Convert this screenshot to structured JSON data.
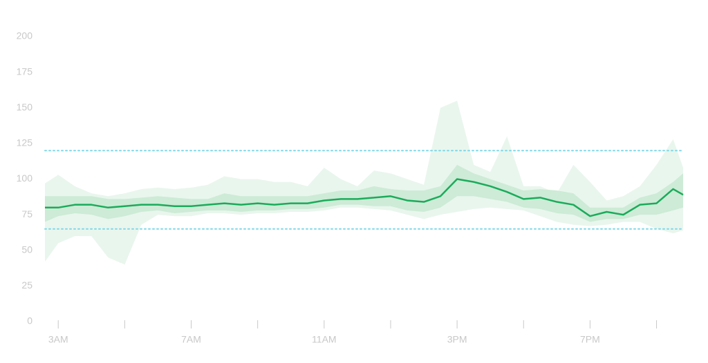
{
  "chart_data": {
    "type": "line",
    "color": "#1aab5a",
    "x": [
      2.6,
      3,
      3.5,
      4,
      4.5,
      5,
      5.5,
      6,
      6.5,
      7,
      7.5,
      8,
      8.5,
      9,
      9.5,
      10,
      10.5,
      11,
      11.5,
      12,
      12.5,
      13,
      13.5,
      14,
      14.5,
      15,
      15.5,
      16,
      16.5,
      17,
      17.5,
      18,
      18.5,
      19,
      19.5,
      20,
      20.5,
      21,
      21.5,
      21.8
    ],
    "values": [
      80,
      80,
      82,
      82,
      80,
      81,
      82,
      82,
      81,
      81,
      82,
      83,
      82,
      83,
      82,
      83,
      83,
      85,
      86,
      86,
      87,
      88,
      85,
      84,
      88,
      100,
      98,
      95,
      91,
      86,
      87,
      84,
      82,
      74,
      77,
      75,
      82,
      83,
      93,
      89
    ],
    "bands": [
      {
        "color": "#e9f6ed",
        "lower": [
          42,
          55,
          60,
          60,
          45,
          40,
          68,
          75,
          74,
          74,
          76,
          76,
          75,
          76,
          76,
          77,
          77,
          78,
          80,
          80,
          79,
          78,
          75,
          72,
          75,
          77,
          79,
          80,
          79,
          78,
          74,
          70,
          68,
          67,
          68,
          70,
          70,
          65,
          62,
          64
        ],
        "upper": [
          97,
          103,
          95,
          90,
          88,
          90,
          93,
          94,
          93,
          94,
          96,
          102,
          100,
          100,
          98,
          98,
          95,
          108,
          100,
          95,
          106,
          104,
          100,
          96,
          150,
          155,
          110,
          105,
          130,
          95,
          95,
          90,
          110,
          98,
          85,
          88,
          95,
          110,
          128,
          108
        ]
      },
      {
        "color": "#cdebd6",
        "lower": [
          70,
          74,
          76,
          75,
          72,
          74,
          77,
          78,
          76,
          77,
          78,
          78,
          77,
          78,
          78,
          79,
          79,
          80,
          82,
          82,
          81,
          81,
          78,
          77,
          80,
          88,
          88,
          86,
          84,
          80,
          79,
          76,
          75,
          70,
          72,
          72,
          75,
          75,
          78,
          80
        ],
        "upper": [
          88,
          88,
          88,
          88,
          86,
          86,
          87,
          88,
          87,
          86,
          86,
          90,
          88,
          88,
          88,
          88,
          88,
          90,
          92,
          92,
          95,
          93,
          92,
          92,
          95,
          110,
          104,
          100,
          96,
          92,
          93,
          92,
          90,
          80,
          80,
          80,
          87,
          90,
          98,
          104
        ]
      }
    ],
    "thresholds": [
      {
        "value": 120,
        "color": "#7fd8e8"
      },
      {
        "value": 65,
        "color": "#7fd8e8"
      }
    ],
    "xlim": [
      2.6,
      21.8
    ],
    "xticks": [
      {
        "value": 3,
        "label": "3AM"
      },
      {
        "value": 7,
        "label": "7AM"
      },
      {
        "value": 11,
        "label": "11AM"
      },
      {
        "value": 15,
        "label": "3PM"
      },
      {
        "value": 19,
        "label": "7PM"
      }
    ],
    "xminor_ticks": [
      5,
      9,
      13,
      17,
      21
    ],
    "ylim": [
      0,
      200
    ],
    "yticks": [
      0,
      25,
      50,
      75,
      100,
      125,
      150,
      175,
      200
    ]
  }
}
